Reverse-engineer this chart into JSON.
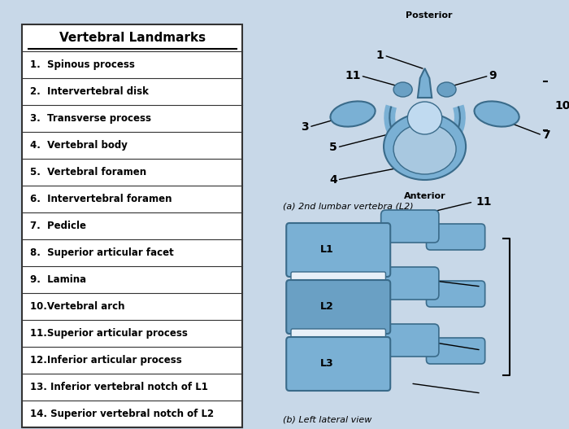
{
  "title": "Vertebral Landmarks",
  "items": [
    "1.  Spinous process",
    "2.  Intervertebral disk",
    "3.  Transverse process",
    "4.  Vertebral body",
    "5.  Vertebral foramen",
    "6.  Intervertebral foramen",
    "7.  Pedicle",
    "8.  Superior articular facet",
    "9.  Lamina",
    "10.Vertebral arch",
    "11.Superior articular process",
    "12.Inferior articular process",
    "13. Inferior vertebral notch of L1",
    "14. Superior vertebral notch of L2"
  ],
  "bg_color": "#c8d8e8",
  "table_border": "#333333",
  "title_color": "#000000",
  "item_color": "#000000",
  "label_posterior": "Posterior",
  "label_anterior": "Anterior",
  "label_a": "(a) 2nd lumbar vertebra (L2)",
  "label_b": "(b) Left lateral view",
  "spine_labels": [
    "L1",
    "L2",
    "L3"
  ],
  "body_color": "#7ab0d4",
  "body_color2": "#6aa0c4",
  "inner_color": "#a8c8e0",
  "foramen_color": "#c0daf0",
  "dark_blue": "#3a6b8a",
  "disk_color": "#e8f0f8"
}
